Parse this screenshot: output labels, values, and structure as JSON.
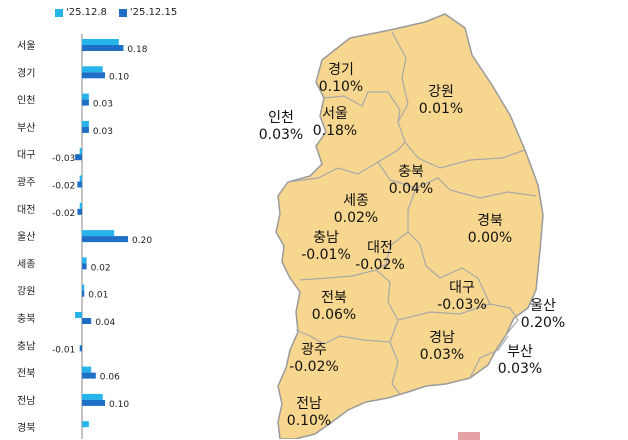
{
  "legend": [
    {
      "label": "'25.12.8",
      "color": "#27b4ea"
    },
    {
      "label": "'25.12.15",
      "color": "#1f6fc6"
    }
  ],
  "chart_data": {
    "type": "bar",
    "orientation": "horizontal",
    "categories": [
      "서울",
      "경기",
      "인천",
      "부산",
      "대구",
      "광주",
      "대전",
      "울산",
      "세종",
      "강원",
      "충북",
      "충남",
      "전북",
      "전남",
      "경북"
    ],
    "series": [
      {
        "name": "'25.12.8",
        "color": "#27b4ea",
        "values": [
          0.16,
          0.09,
          0.03,
          0.03,
          -0.01,
          -0.01,
          -0.01,
          0.14,
          0.02,
          0.01,
          -0.03,
          0.0,
          0.04,
          0.09,
          0.03
        ]
      },
      {
        "name": "'25.12.15",
        "color": "#1f6fc6",
        "values": [
          0.18,
          0.1,
          0.03,
          0.03,
          -0.03,
          -0.02,
          -0.02,
          0.2,
          0.02,
          0.01,
          0.04,
          -0.01,
          0.06,
          0.1,
          0.0
        ]
      }
    ],
    "value_labels": [
      "0.18",
      "0.10",
      "0.03",
      "0.03",
      "-0.03",
      "-0.02",
      "-0.02",
      "0.20",
      "0.02",
      "0.01",
      "0.04",
      "-0.01",
      "0.06",
      "0.10",
      ""
    ]
  },
  "map": {
    "fill": "#f7d78f",
    "border": "#9a9a9a",
    "regions": [
      {
        "name": "경기",
        "value": "0.10%"
      },
      {
        "name": "강원",
        "value": "0.01%"
      },
      {
        "name": "인천",
        "value": "0.03%"
      },
      {
        "name": "서울",
        "value": "0.18%"
      },
      {
        "name": "충북",
        "value": "0.04%"
      },
      {
        "name": "세종",
        "value": "0.02%"
      },
      {
        "name": "경북",
        "value": "0.00%"
      },
      {
        "name": "충남",
        "value": "-0.01%"
      },
      {
        "name": "대전",
        "value": "-0.02%"
      },
      {
        "name": "대구",
        "value": "-0.03%"
      },
      {
        "name": "전북",
        "value": "0.06%"
      },
      {
        "name": "울산",
        "value": "0.20%"
      },
      {
        "name": "광주",
        "value": "-0.02%"
      },
      {
        "name": "경남",
        "value": "0.03%"
      },
      {
        "name": "부산",
        "value": "0.03%"
      },
      {
        "name": "전남",
        "value": "0.10%"
      }
    ]
  }
}
